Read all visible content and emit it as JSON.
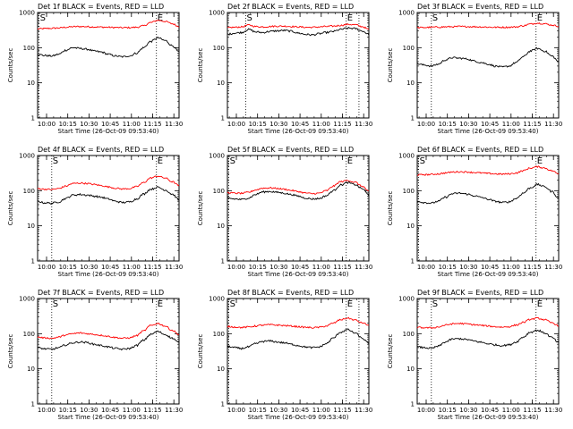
{
  "chart_data": {
    "type": "line",
    "ylabel": "Counts/sec",
    "xlabel": "Start Time (26-Oct-09 09:53:40)",
    "x_tick_labels": [
      "10:00",
      "10:15",
      "10:30",
      "10:45",
      "11:00",
      "11:15",
      "11:30"
    ],
    "x_tick_minutes": [
      6.33,
      21.33,
      36.33,
      51.33,
      66.33,
      81.33,
      96.33
    ],
    "xlim_minutes": [
      0,
      100
    ],
    "y_scale": "log",
    "ylim": [
      1,
      1000
    ],
    "y_tick_labels": [
      "1",
      "10",
      "100",
      "1000"
    ],
    "event_marker_labels": [
      "S",
      "E"
    ],
    "colors": {
      "events": "#000000",
      "lld": "#ff0000",
      "markers": "#000000"
    },
    "panels": [
      {
        "title": "Det 1f BLACK = Events, RED = LLD",
        "markers_minutes": [
          1,
          84
        ],
        "events": {
          "x": [
            0,
            5,
            10,
            15,
            20,
            25,
            30,
            35,
            40,
            45,
            50,
            55,
            60,
            65,
            70,
            75,
            80,
            85,
            90,
            95,
            100
          ],
          "values": [
            65,
            60,
            58,
            65,
            85,
            100,
            95,
            90,
            80,
            75,
            65,
            58,
            55,
            58,
            70,
            100,
            150,
            190,
            160,
            115,
            75
          ]
        },
        "lld": {
          "x": [
            0,
            5,
            10,
            15,
            20,
            25,
            30,
            35,
            40,
            45,
            50,
            55,
            60,
            65,
            70,
            75,
            80,
            85,
            90,
            95,
            100
          ],
          "values": [
            340,
            350,
            355,
            365,
            380,
            395,
            400,
            395,
            390,
            385,
            380,
            375,
            370,
            372,
            380,
            420,
            520,
            600,
            560,
            480,
            400
          ]
        }
      },
      {
        "title": "Det 2f BLACK = Events, RED = LLD",
        "markers_minutes": [
          13,
          84,
          93
        ],
        "events": {
          "x": [
            0,
            5,
            10,
            15,
            20,
            25,
            30,
            35,
            40,
            45,
            50,
            55,
            60,
            65,
            70,
            75,
            80,
            85,
            90,
            95,
            100
          ],
          "values": [
            240,
            260,
            270,
            330,
            280,
            270,
            290,
            300,
            310,
            295,
            260,
            240,
            230,
            250,
            270,
            290,
            330,
            360,
            350,
            300,
            240
          ]
        },
        "lld": {
          "x": [
            0,
            5,
            10,
            15,
            20,
            25,
            30,
            35,
            40,
            45,
            50,
            55,
            60,
            65,
            70,
            75,
            80,
            85,
            90,
            95,
            100
          ],
          "values": [
            370,
            380,
            390,
            440,
            400,
            390,
            400,
            410,
            410,
            400,
            390,
            380,
            380,
            390,
            400,
            410,
            430,
            460,
            450,
            400,
            330
          ]
        }
      },
      {
        "title": "Det 3f BLACK = Events, RED = LLD",
        "markers_minutes": [
          10,
          84
        ],
        "events": {
          "x": [
            0,
            5,
            10,
            15,
            20,
            25,
            30,
            35,
            40,
            45,
            50,
            55,
            60,
            65,
            70,
            75,
            80,
            85,
            90,
            95,
            100
          ],
          "values": [
            35,
            32,
            30,
            34,
            45,
            52,
            50,
            48,
            42,
            38,
            34,
            30,
            28,
            30,
            38,
            55,
            80,
            95,
            80,
            58,
            40
          ]
        },
        "lld": {
          "x": [
            0,
            5,
            10,
            15,
            20,
            25,
            30,
            35,
            40,
            45,
            50,
            55,
            60,
            65,
            70,
            75,
            80,
            85,
            90,
            95,
            100
          ],
          "values": [
            370,
            375,
            380,
            385,
            390,
            395,
            400,
            398,
            395,
            390,
            385,
            380,
            380,
            382,
            390,
            420,
            470,
            500,
            480,
            440,
            410
          ]
        }
      },
      {
        "title": "Det 4f BLACK = Events, RED = LLD",
        "markers_minutes": [
          10,
          84
        ],
        "events": {
          "x": [
            0,
            5,
            10,
            15,
            20,
            25,
            30,
            35,
            40,
            45,
            50,
            55,
            60,
            65,
            70,
            75,
            80,
            85,
            90,
            95,
            100
          ],
          "values": [
            50,
            45,
            44,
            48,
            60,
            75,
            78,
            75,
            70,
            65,
            58,
            50,
            46,
            48,
            58,
            80,
            110,
            125,
            105,
            80,
            55
          ]
        },
        "lld": {
          "x": [
            0,
            5,
            10,
            15,
            20,
            25,
            30,
            35,
            40,
            45,
            50,
            55,
            60,
            65,
            70,
            75,
            80,
            85,
            90,
            95,
            100
          ],
          "values": [
            115,
            110,
            108,
            115,
            135,
            160,
            165,
            160,
            150,
            140,
            128,
            118,
            112,
            115,
            130,
            170,
            230,
            260,
            230,
            180,
            140
          ]
        }
      },
      {
        "title": "Det 5f BLACK = Events, RED = LLD",
        "markers_minutes": [
          1,
          84
        ],
        "events": {
          "x": [
            0,
            5,
            10,
            15,
            20,
            25,
            30,
            35,
            40,
            45,
            50,
            55,
            60,
            65,
            70,
            75,
            80,
            85,
            90,
            95,
            100
          ],
          "values": [
            62,
            58,
            56,
            62,
            78,
            92,
            95,
            90,
            85,
            78,
            70,
            62,
            58,
            60,
            72,
            100,
            145,
            170,
            150,
            115,
            75
          ]
        },
        "lld": {
          "x": [
            0,
            5,
            10,
            15,
            20,
            25,
            30,
            35,
            40,
            45,
            50,
            55,
            60,
            65,
            70,
            75,
            80,
            85,
            90,
            95,
            100
          ],
          "values": [
            88,
            85,
            84,
            90,
            105,
            118,
            120,
            116,
            110,
            102,
            94,
            86,
            82,
            85,
            100,
            135,
            180,
            195,
            175,
            135,
            95
          ]
        }
      },
      {
        "title": "Det 6f BLACK = Events, RED = LLD",
        "markers_minutes": [
          1,
          84
        ],
        "events": {
          "x": [
            0,
            5,
            10,
            15,
            20,
            25,
            30,
            35,
            40,
            45,
            50,
            55,
            60,
            65,
            70,
            75,
            80,
            85,
            90,
            95,
            100
          ],
          "values": [
            50,
            46,
            44,
            50,
            65,
            82,
            85,
            80,
            72,
            65,
            57,
            50,
            46,
            48,
            60,
            85,
            120,
            150,
            130,
            95,
            60
          ]
        },
        "lld": {
          "x": [
            0,
            5,
            10,
            15,
            20,
            25,
            30,
            35,
            40,
            45,
            50,
            55,
            60,
            65,
            70,
            75,
            80,
            85,
            90,
            95,
            100
          ],
          "values": [
            280,
            285,
            290,
            300,
            320,
            340,
            345,
            340,
            330,
            320,
            310,
            300,
            295,
            300,
            320,
            370,
            440,
            480,
            440,
            370,
            300
          ]
        }
      },
      {
        "title": "Det 7f BLACK = Events, RED = LLD",
        "markers_minutes": [
          10,
          84
        ],
        "events": {
          "x": [
            0,
            5,
            10,
            15,
            20,
            25,
            30,
            35,
            40,
            45,
            50,
            55,
            60,
            65,
            70,
            75,
            80,
            85,
            90,
            95,
            100
          ],
          "values": [
            40,
            37,
            36,
            40,
            48,
            55,
            58,
            56,
            50,
            46,
            42,
            38,
            36,
            38,
            46,
            65,
            95,
            115,
            95,
            75,
            55
          ]
        },
        "lld": {
          "x": [
            0,
            5,
            10,
            15,
            20,
            25,
            30,
            35,
            40,
            45,
            50,
            55,
            60,
            65,
            70,
            75,
            80,
            85,
            90,
            95,
            100
          ],
          "values": [
            80,
            76,
            74,
            80,
            92,
            100,
            105,
            100,
            95,
            90,
            84,
            78,
            74,
            76,
            88,
            120,
            170,
            195,
            165,
            125,
            95
          ]
        }
      },
      {
        "title": "Det 8f BLACK = Events, RED = LLD",
        "markers_minutes": [
          1,
          84,
          93
        ],
        "events": {
          "x": [
            0,
            5,
            10,
            15,
            20,
            25,
            30,
            35,
            40,
            45,
            50,
            55,
            60,
            65,
            70,
            75,
            80,
            85,
            90,
            95,
            100
          ],
          "values": [
            44,
            40,
            38,
            42,
            52,
            60,
            62,
            58,
            55,
            50,
            46,
            42,
            40,
            42,
            52,
            75,
            110,
            130,
            105,
            75,
            52
          ]
        },
        "lld": {
          "x": [
            0,
            5,
            10,
            15,
            20,
            25,
            30,
            35,
            40,
            45,
            50,
            55,
            60,
            65,
            70,
            75,
            80,
            85,
            90,
            95,
            100
          ],
          "values": [
            160,
            155,
            150,
            155,
            165,
            175,
            180,
            176,
            170,
            165,
            158,
            152,
            148,
            152,
            165,
            200,
            250,
            275,
            245,
            205,
            175
          ]
        }
      },
      {
        "title": "Det 9f BLACK = Events, RED = LLD",
        "markers_minutes": [
          10,
          84
        ],
        "events": {
          "x": [
            0,
            5,
            10,
            15,
            20,
            25,
            30,
            35,
            40,
            45,
            50,
            55,
            60,
            65,
            70,
            75,
            80,
            85,
            90,
            95,
            100
          ],
          "values": [
            42,
            40,
            38,
            44,
            58,
            70,
            72,
            68,
            62,
            57,
            52,
            48,
            46,
            48,
            58,
            80,
            110,
            125,
            105,
            78,
            55
          ]
        },
        "lld": {
          "x": [
            0,
            5,
            10,
            15,
            20,
            25,
            30,
            35,
            40,
            45,
            50,
            55,
            60,
            65,
            70,
            75,
            80,
            85,
            90,
            95,
            100
          ],
          "values": [
            150,
            148,
            146,
            155,
            175,
            190,
            195,
            190,
            180,
            172,
            165,
            158,
            154,
            158,
            175,
            210,
            255,
            275,
            250,
            205,
            170
          ]
        }
      }
    ]
  }
}
